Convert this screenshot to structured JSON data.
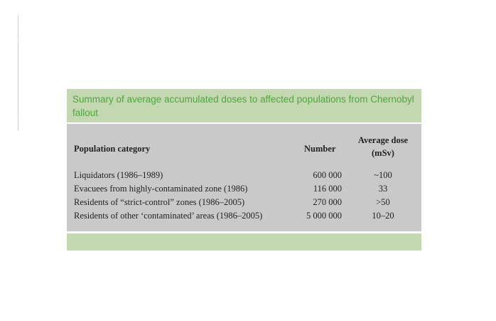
{
  "title": "Summary of average accumulated doses to affected populations from Chernobyl fallout",
  "headers": {
    "category": "Population category",
    "number": "Number",
    "dose_line1": "Average dose",
    "dose_line2": "(mSv)"
  },
  "rows": [
    {
      "category": "Liquidators (1986–1989)",
      "number": "600 000",
      "dose": "~100"
    },
    {
      "category": "Evacuees from highly-contaminated zone (1986)",
      "number": "116 000",
      "dose": "33"
    },
    {
      "category": "Residents of “strict-control” zones (1986–2005)",
      "number": "270 000",
      "dose": ">50"
    },
    {
      "category": "Residents of other ‘contaminated’ areas (1986–2005)",
      "number": "5 000 000",
      "dose": "10–20"
    }
  ]
}
